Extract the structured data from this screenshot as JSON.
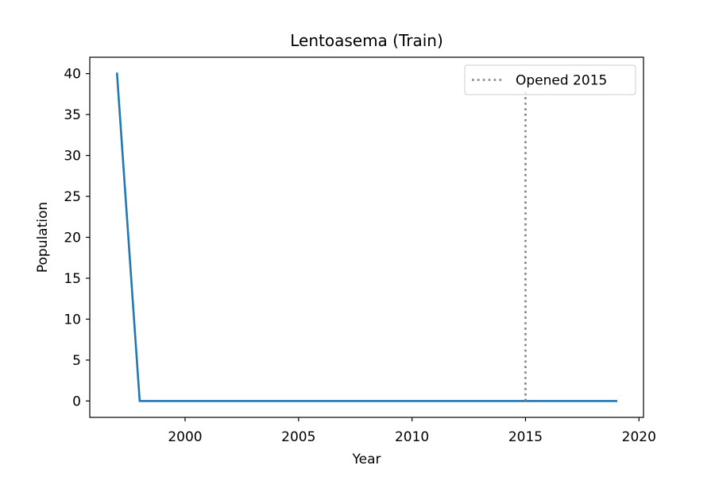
{
  "chart_data": {
    "type": "line",
    "title": "Lentoasema (Train)",
    "xlabel": "Year",
    "ylabel": "Population",
    "xlim": [
      1995.8,
      2020.2
    ],
    "ylim": [
      -2,
      42
    ],
    "xticks": [
      2000,
      2005,
      2010,
      2015,
      2020
    ],
    "yticks": [
      0,
      5,
      10,
      15,
      20,
      25,
      30,
      35,
      40
    ],
    "grid": false,
    "legend_position": "upper right",
    "series": [
      {
        "color": "#1f77b4",
        "x": [
          1997,
          1998,
          1999,
          2000,
          2001,
          2002,
          2003,
          2004,
          2005,
          2006,
          2007,
          2008,
          2009,
          2010,
          2011,
          2012,
          2013,
          2014,
          2015,
          2016,
          2017,
          2018,
          2019
        ],
        "y": [
          40,
          0,
          0,
          0,
          0,
          0,
          0,
          0,
          0,
          0,
          0,
          0,
          0,
          0,
          0,
          0,
          0,
          0,
          0,
          0,
          0,
          0,
          0
        ]
      }
    ],
    "annotations": [
      {
        "type": "vertical-line",
        "name": "Opened 2015",
        "x": 2015,
        "y_range": [
          0,
          38
        ],
        "color": "#808080",
        "style": "dotted"
      }
    ]
  }
}
